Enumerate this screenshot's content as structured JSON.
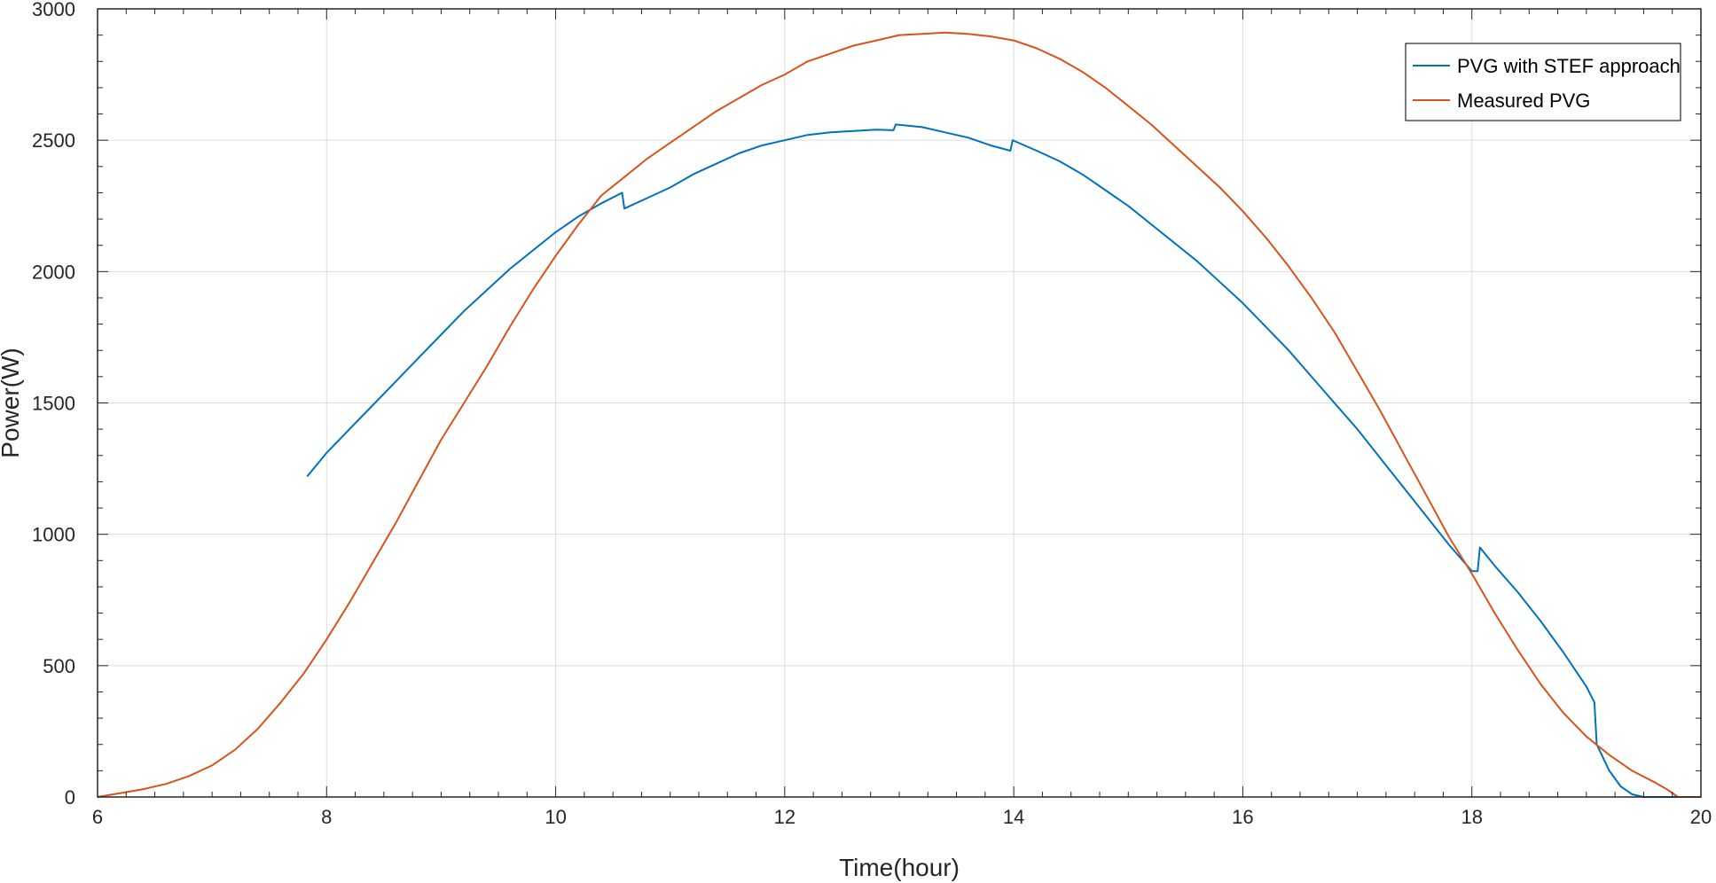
{
  "chart_data": {
    "type": "line",
    "title": "",
    "xlabel": "Time(hour)",
    "ylabel": "Power(W)",
    "xlim": [
      6,
      20
    ],
    "ylim": [
      0,
      3000
    ],
    "xticks": [
      6,
      8,
      10,
      12,
      14,
      16,
      18,
      20
    ],
    "yticks": [
      0,
      500,
      1000,
      1500,
      2000,
      2500,
      3000
    ],
    "grid": true,
    "legend_position": "top-right",
    "series": [
      {
        "name": "PVG with STEF approach",
        "color": "#0072BD",
        "x": [
          7.83,
          8.0,
          8.2,
          8.4,
          8.6,
          8.8,
          9.0,
          9.2,
          9.4,
          9.6,
          9.8,
          10.0,
          10.2,
          10.4,
          10.58,
          10.6,
          10.8,
          11.0,
          11.2,
          11.4,
          11.6,
          11.8,
          12.0,
          12.2,
          12.4,
          12.6,
          12.8,
          12.95,
          12.97,
          13.2,
          13.4,
          13.6,
          13.8,
          13.97,
          13.99,
          14.2,
          14.4,
          14.6,
          14.8,
          15.0,
          15.2,
          15.4,
          15.6,
          15.8,
          16.0,
          16.2,
          16.4,
          16.6,
          16.8,
          17.0,
          17.2,
          17.4,
          17.6,
          17.8,
          18.0,
          18.05,
          18.07,
          18.2,
          18.4,
          18.6,
          18.8,
          19.0,
          19.07,
          19.09,
          19.2,
          19.3,
          19.4,
          19.5,
          19.6,
          19.7,
          19.8
        ],
        "y": [
          1220,
          1310,
          1400,
          1490,
          1580,
          1670,
          1760,
          1850,
          1930,
          2010,
          2080,
          2150,
          2210,
          2260,
          2300,
          2240,
          2280,
          2320,
          2370,
          2410,
          2450,
          2480,
          2500,
          2520,
          2530,
          2535,
          2540,
          2538,
          2560,
          2550,
          2530,
          2510,
          2480,
          2460,
          2500,
          2460,
          2420,
          2370,
          2310,
          2250,
          2180,
          2110,
          2040,
          1960,
          1880,
          1790,
          1700,
          1600,
          1500,
          1400,
          1290,
          1180,
          1070,
          960,
          860,
          860,
          950,
          880,
          780,
          670,
          550,
          420,
          360,
          200,
          100,
          40,
          10,
          0,
          0,
          0,
          0
        ]
      },
      {
        "name": "Measured PVG",
        "color": "#D95319",
        "x": [
          6.0,
          6.2,
          6.4,
          6.6,
          6.8,
          7.0,
          7.2,
          7.4,
          7.6,
          7.8,
          8.0,
          8.2,
          8.4,
          8.6,
          8.8,
          9.0,
          9.2,
          9.4,
          9.6,
          9.8,
          10.0,
          10.2,
          10.4,
          10.6,
          10.8,
          11.0,
          11.2,
          11.4,
          11.6,
          11.8,
          12.0,
          12.2,
          12.4,
          12.6,
          12.8,
          13.0,
          13.2,
          13.4,
          13.6,
          13.8,
          14.0,
          14.2,
          14.4,
          14.6,
          14.8,
          15.0,
          15.2,
          15.4,
          15.6,
          15.8,
          16.0,
          16.2,
          16.4,
          16.6,
          16.8,
          17.0,
          17.2,
          17.4,
          17.6,
          17.8,
          18.0,
          18.2,
          18.4,
          18.6,
          18.8,
          19.0,
          19.2,
          19.4,
          19.6,
          19.7,
          19.8,
          20.0
        ],
        "y": [
          0,
          15,
          30,
          50,
          80,
          120,
          180,
          260,
          360,
          470,
          600,
          740,
          890,
          1040,
          1200,
          1360,
          1500,
          1640,
          1790,
          1930,
          2060,
          2180,
          2290,
          2360,
          2430,
          2490,
          2550,
          2610,
          2660,
          2710,
          2750,
          2800,
          2830,
          2860,
          2880,
          2900,
          2905,
          2910,
          2905,
          2895,
          2880,
          2850,
          2810,
          2760,
          2700,
          2630,
          2560,
          2480,
          2400,
          2320,
          2230,
          2130,
          2020,
          1900,
          1770,
          1620,
          1470,
          1310,
          1150,
          990,
          850,
          700,
          560,
          430,
          320,
          230,
          160,
          100,
          55,
          30,
          0,
          0
        ]
      }
    ]
  }
}
